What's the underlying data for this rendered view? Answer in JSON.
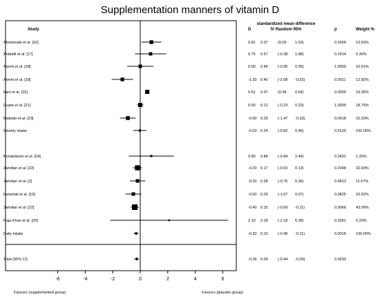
{
  "chart_data": {
    "type": "forest",
    "title": "Supplementation manners of vitamin D",
    "column_headers": {
      "study": "Study",
      "d": "D",
      "effect_line1": "standardized mean difference",
      "effect_line2": "IV Random 95%",
      "p": "p",
      "weight": "Weight %"
    },
    "x_ticks": [
      "-6",
      "-4",
      "-2",
      "0",
      "2",
      "4",
      "6"
    ],
    "xlim": [
      -6.8,
      6.8
    ],
    "favours_left": "Favours (supplemented group)",
    "favours_right": "Favours (placebo group)",
    "rows": [
      {
        "study": "Abootorabi et al. [16]",
        "d": "0.81",
        "se": "0.37",
        "lo": "(0.09",
        "hi": "1.53)",
        "p": "0.0269",
        "weight": "13.53%",
        "kind": "study",
        "ci": [
          0.09,
          1.53
        ]
      },
      {
        "study": "Ardabili et al. [17]",
        "d": "0.75",
        "se": "0.57",
        "lo": "(-0.38",
        "hi": "1.88)",
        "p": "0.1914",
        "weight": "9.30%",
        "kind": "study",
        "ci": [
          -0.38,
          1.88
        ]
      },
      {
        "study": "Asemi et al. [18]",
        "d": "0.00",
        "se": "0.49",
        "lo": "(-0.95",
        "hi": "0.95)",
        "p": "1.0000",
        "weight": "10.91%",
        "kind": "study",
        "ci": [
          -0.95,
          0.95
        ]
      },
      {
        "study": "Asemi et al. [18]",
        "d": "-1.30",
        "se": "0.40",
        "lo": "(-2.08",
        "hi": "-0.52)",
        "p": "0.0011",
        "weight": "12.82%",
        "kind": "study",
        "ci": [
          -2.08,
          -0.52
        ]
      },
      {
        "study": "Irani et al. [15]",
        "d": "0.51",
        "se": "0.07",
        "lo": "(0.38",
        "hi": "0.64)",
        "p": "0.0000",
        "weight": "19.36%",
        "kind": "study",
        "ci": [
          0.38,
          0.64
        ]
      },
      {
        "study": "Gupta et al. [21]",
        "d": "0.00",
        "se": "0.12",
        "lo": "(-0.23",
        "hi": "0.23)",
        "p": "1.0000",
        "weight": "18.75%",
        "kind": "study",
        "ci": [
          -0.23,
          0.23
        ]
      },
      {
        "study": "Maktabi et al. [23]",
        "d": "-0.90",
        "se": "0.29",
        "lo": "(-1.47",
        "hi": "-0.33)",
        "p": "0.0018",
        "weight": "15.33%",
        "kind": "study",
        "ci": [
          -1.47,
          -0.33
        ]
      },
      {
        "study": "Weekly intake",
        "d": "-0.03",
        "se": "0.24",
        "lo": "(-0.50",
        "hi": "0.45)",
        "p": "0.9120",
        "weight": "100.00%",
        "kind": "pooled",
        "ci": [
          -0.5,
          0.45
        ]
      },
      {
        "study": "Bonakdaran et al. [24]",
        "d": "0.80",
        "se": "0.84",
        "lo": "(-0.84",
        "hi": "2.44)",
        "p": "0.3401",
        "weight": "1.33%",
        "kind": "study",
        "ci": [
          -0.84,
          2.44
        ]
      },
      {
        "study": "Jamilian et al. [22]",
        "d": "-0.20",
        "se": "0.17",
        "lo": "(-0.53",
        "hi": "0.13)",
        "p": "0.2348",
        "weight": "32.93%",
        "kind": "study",
        "ci": [
          -0.53,
          0.13
        ]
      },
      {
        "study": "Jamilian et al. [2]",
        "d": "-0.20",
        "se": "0.28",
        "lo": "(-0.76",
        "hi": "0.36)",
        "p": "0.4813",
        "weight": "11.57%",
        "kind": "study",
        "ci": [
          -0.76,
          0.36
        ]
      },
      {
        "study": "Karamali et al. [19]",
        "d": "-0.50",
        "se": "0.29",
        "lo": "(-1.07",
        "hi": "0.07)",
        "p": "0.0825",
        "weight": "10.92%",
        "kind": "study",
        "ci": [
          -1.07,
          0.07
        ]
      },
      {
        "study": "Jamilian et al. [22]",
        "d": "-0.40",
        "se": "0.15",
        "lo": "(-0.69",
        "hi": "-0.11)",
        "p": "0.0066",
        "weight": "43.06%",
        "kind": "study",
        "ci": [
          -0.69,
          -0.11
        ]
      },
      {
        "study": "Raja Khan et al. [20]",
        "d": "2.10",
        "se": "2.18",
        "lo": "(-2.18",
        "hi": "6.38)",
        "p": "0.3361",
        "weight": "0.20%",
        "kind": "study",
        "ci": [
          -2.18,
          6.38
        ]
      },
      {
        "study": "Daily intake",
        "d": "-0.30",
        "se": "0.10",
        "lo": "(-0.49",
        "hi": "-0.11)",
        "p": "0.0018",
        "weight": "100.00%",
        "kind": "pooled",
        "ci": [
          -0.49,
          -0.11
        ]
      },
      {
        "study": "Total (95% CI)",
        "d": "-0.26",
        "se": "0.09",
        "lo": "(-0.44",
        "hi": "-0.09)",
        "p": "0.0033",
        "weight": "",
        "kind": "total",
        "ci": [
          -0.44,
          -0.09
        ]
      }
    ]
  }
}
